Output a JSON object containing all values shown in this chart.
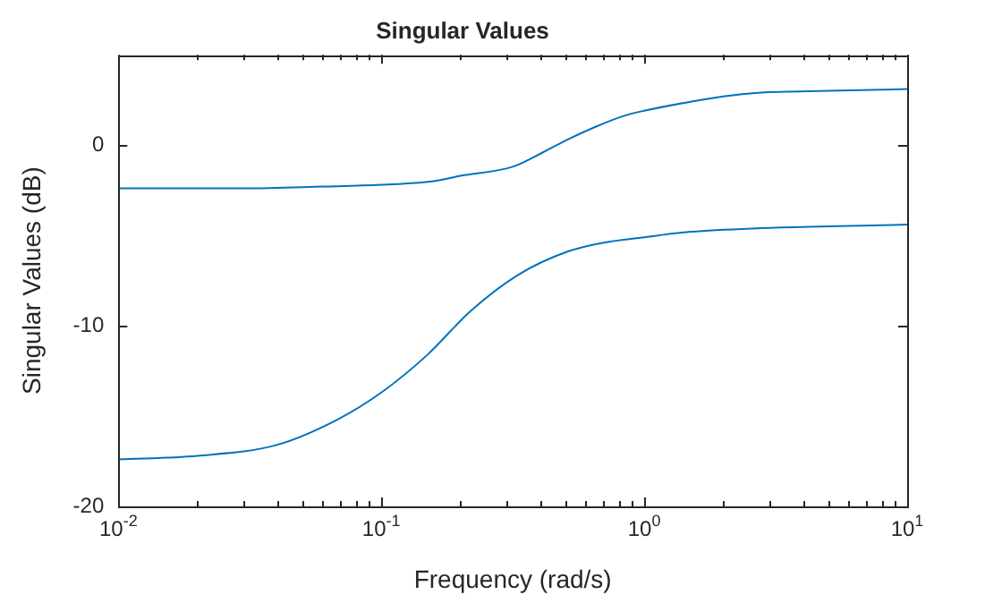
{
  "chart_data": {
    "type": "line",
    "title": "Singular Values",
    "xlabel": "Frequency (rad/s)",
    "ylabel": "Singular Values (dB)",
    "log": "x",
    "grid": false,
    "legend": false,
    "marker": "none",
    "line_style": "solid",
    "xlim": [
      0.01,
      10
    ],
    "xticks": [
      {
        "value": 0.01,
        "label": "10$^{-2}$"
      },
      {
        "value": 0.1,
        "label": "10$^{-1}$"
      },
      {
        "value": 1,
        "label": "10$^{0}$"
      },
      {
        "value": 10,
        "label": "10$^{1}$"
      }
    ],
    "ylim": [
      -20,
      5
    ],
    "yticks": [
      -20,
      -10,
      0
    ],
    "series": [
      {
        "color": "#0072bd",
        "x": [
          0.01,
          0.03,
          0.06,
          0.1,
          0.158,
          0.2,
          0.316,
          0.4,
          0.51,
          0.65,
          0.83,
          1,
          1.5,
          2,
          2.77,
          5,
          10
        ],
        "values": [
          -2.4,
          -2.4,
          -2.3,
          -2.2,
          -2.0,
          -1.7,
          -1.2,
          -0.5,
          0.3,
          1.0,
          1.6,
          1.9,
          2.4,
          2.7,
          2.9,
          3.0,
          3.1
        ]
      },
      {
        "color": "#0072bd",
        "x": [
          0.01,
          0.02,
          0.04,
          0.068,
          0.1,
          0.15,
          0.218,
          0.33,
          0.51,
          0.7,
          1,
          1.5,
          2.77,
          5,
          10
        ],
        "values": [
          -17.4,
          -17.2,
          -16.6,
          -15.2,
          -13.7,
          -11.6,
          -9.2,
          -7.2,
          -5.9,
          -5.4,
          -5.1,
          -4.8,
          -4.6,
          -4.5,
          -4.4
        ]
      }
    ]
  }
}
